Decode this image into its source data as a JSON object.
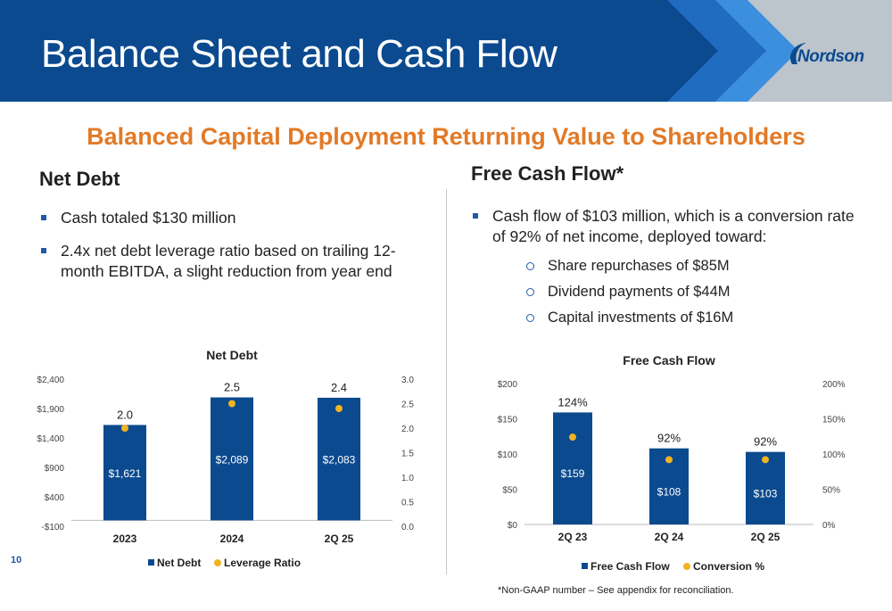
{
  "page": {
    "title": "Balance Sheet and Cash Flow",
    "logo_text": "Nordson",
    "subtitle": "Balanced Capital Deployment Returning Value to Shareholders",
    "page_number": "10",
    "footnote": "*Non-GAAP number – See appendix for reconciliation."
  },
  "colors": {
    "header_blue": "#0b4a8f",
    "header_mid_blue": "#1f6cc0",
    "header_light_blue": "#3c8fdc",
    "header_grey": "#bcc4cc",
    "accent_orange": "#e27a27",
    "bar_blue": "#0b4a8f",
    "marker_gold": "#f0b323",
    "bullet_blue": "#1f5aa6"
  },
  "net_debt_section": {
    "heading": "Net Debt",
    "bullets": [
      "Cash totaled $130 million",
      "2.4x net debt leverage ratio based on trailing 12-month EBITDA, a slight reduction from year end"
    ]
  },
  "fcf_section": {
    "heading": "Free Cash Flow*",
    "bullets": [
      "Cash flow of $103 million, which is a conversion rate of 92% of net income, deployed toward:"
    ],
    "sub_bullets": [
      "Share repurchases of $85M",
      "Dividend payments of $44M",
      "Capital investments of $16M"
    ]
  },
  "chart_data": [
    {
      "type": "bar",
      "title": "Net Debt",
      "categories": [
        "2023",
        "2024",
        "2Q 25"
      ],
      "series": [
        {
          "name": "Net Debt",
          "kind": "bar",
          "axis": "left",
          "values": [
            1621,
            2089,
            2083
          ],
          "labels": [
            "$1,621",
            "$2,089",
            "$2,083"
          ]
        },
        {
          "name": "Leverage Ratio",
          "kind": "marker",
          "axis": "right",
          "values": [
            2.0,
            2.5,
            2.4
          ],
          "labels": [
            "2.0",
            "2.5",
            "2.4"
          ]
        }
      ],
      "y_left": {
        "min": -100,
        "max": 2400,
        "ticks": [
          -100,
          400,
          900,
          1400,
          1900,
          2400
        ],
        "tick_labels": [
          "-$100",
          "$400",
          "$900",
          "$1,400",
          "$1,900",
          "$2,400"
        ]
      },
      "y_right": {
        "min": 0,
        "max": 3.0,
        "ticks": [
          0,
          0.5,
          1.0,
          1.5,
          2.0,
          2.5,
          3.0
        ],
        "tick_labels": [
          "0.0",
          "0.5",
          "1.0",
          "1.5",
          "2.0",
          "2.5",
          "3.0"
        ]
      },
      "legend": "bottom",
      "grid": false
    },
    {
      "type": "bar",
      "title": "Free Cash Flow",
      "categories": [
        "2Q 23",
        "2Q 24",
        "2Q 25"
      ],
      "series": [
        {
          "name": "Free Cash Flow",
          "kind": "bar",
          "axis": "left",
          "values": [
            159,
            108,
            103
          ],
          "labels": [
            "$159",
            "$108",
            "$103"
          ]
        },
        {
          "name": "Conversion %",
          "kind": "marker",
          "axis": "right",
          "values": [
            124,
            92,
            92
          ],
          "labels": [
            "124%",
            "92%",
            "92%"
          ]
        }
      ],
      "y_left": {
        "min": 0,
        "max": 200,
        "ticks": [
          0,
          50,
          100,
          150,
          200
        ],
        "tick_labels": [
          "$0",
          "$50",
          "$100",
          "$150",
          "$200"
        ]
      },
      "y_right": {
        "min": 0,
        "max": 200,
        "ticks": [
          0,
          50,
          100,
          150,
          200
        ],
        "tick_labels": [
          "0%",
          "50%",
          "100%",
          "150%",
          "200%"
        ]
      },
      "legend": "bottom",
      "grid": false
    }
  ]
}
